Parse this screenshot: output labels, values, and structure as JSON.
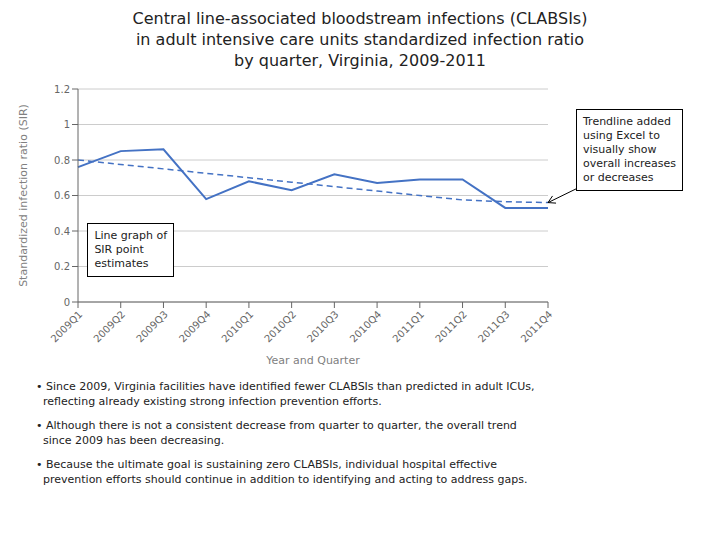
{
  "chart_data": {
    "type": "line",
    "title": "Central line-associated bloodstream infections (CLABSIs)\nin adult intensive care units standardized infection ratio\nby quarter, Virginia, 2009-2011",
    "x_label": "Year and Quarter",
    "y_label": "Standardized infection ratio (SIR)",
    "categories": [
      "2009Q1",
      "2009Q2",
      "2009Q3",
      "2009Q4",
      "2010Q1",
      "2010Q2",
      "2010Q3",
      "2010Q4",
      "2011Q1",
      "2011Q2",
      "2011Q3",
      "2011Q4"
    ],
    "series": [
      {
        "color": "#4472C4",
        "line_style": "solid",
        "values": [
          0.76,
          0.85,
          0.86,
          0.58,
          0.68,
          0.63,
          0.72,
          0.67,
          0.69,
          0.69,
          0.53,
          0.53
        ]
      },
      {
        "color": "#4472C4",
        "line_style": "dashed",
        "values": [
          0.8,
          0.775,
          0.75,
          0.725,
          0.7,
          0.675,
          0.65,
          0.625,
          0.6,
          0.575,
          0.565,
          0.56
        ]
      }
    ],
    "ylim": [
      0,
      1.2
    ],
    "yticks": [
      0,
      0.2,
      0.4,
      0.6,
      0.8,
      1,
      1.2
    ],
    "grid": true,
    "annotations": [
      "Line graph of\nSIR point\nestimates",
      "Trendline added\nusing Excel to\nvisually show\noverall increases\nor decreases"
    ],
    "notes": [
      "• Since 2009, Virginia facilities have identified fewer CLABSIs than predicted in adult ICUs,\n  reflecting already existing strong infection prevention efforts.",
      "• Although there is not a consistent decrease from quarter to quarter, the overall trend\n  since 2009 has been decreasing.",
      "• Because the ultimate goal is sustaining zero CLABSIs, individual hospital effective\n  prevention efforts should continue in addition to identifying and acting to address gaps."
    ]
  }
}
